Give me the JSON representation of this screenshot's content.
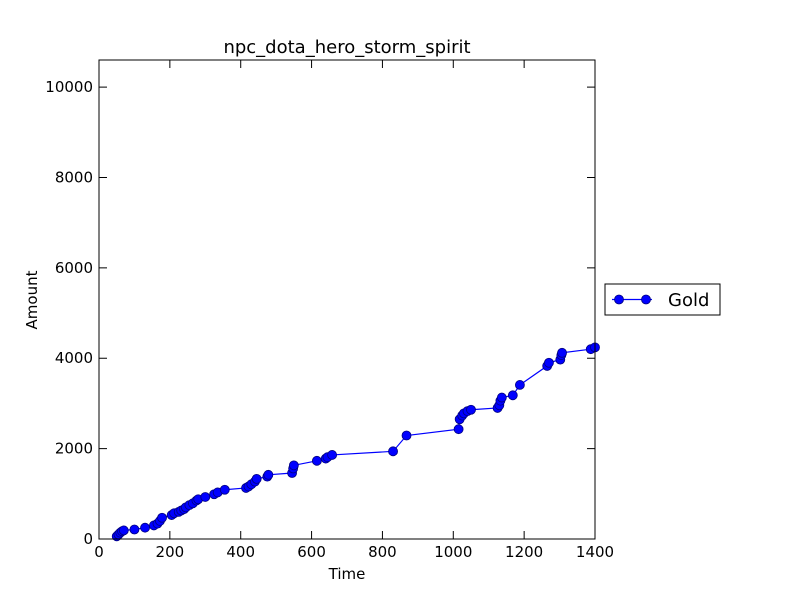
{
  "chart_data": {
    "type": "line",
    "title": "npc_dota_hero_storm_spirit",
    "xlabel": "Time",
    "ylabel": "Amount",
    "xlim": [
      0,
      1400
    ],
    "ylim": [
      0,
      10600
    ],
    "xticks": [
      0,
      200,
      400,
      600,
      800,
      1000,
      1200,
      1400
    ],
    "yticks": [
      0,
      2000,
      4000,
      6000,
      8000,
      10000
    ],
    "grid": false,
    "legend_position": "right",
    "series": [
      {
        "name": "Gold",
        "color": "#0000ff",
        "marker": "circle",
        "points": [
          [
            50,
            60
          ],
          [
            55,
            100
          ],
          [
            60,
            140
          ],
          [
            65,
            170
          ],
          [
            70,
            190
          ],
          [
            100,
            210
          ],
          [
            130,
            250
          ],
          [
            155,
            300
          ],
          [
            165,
            340
          ],
          [
            172,
            400
          ],
          [
            178,
            470
          ],
          [
            205,
            530
          ],
          [
            212,
            570
          ],
          [
            225,
            600
          ],
          [
            232,
            630
          ],
          [
            240,
            660
          ],
          [
            245,
            700
          ],
          [
            255,
            750
          ],
          [
            265,
            790
          ],
          [
            275,
            850
          ],
          [
            280,
            880
          ],
          [
            300,
            930
          ],
          [
            325,
            990
          ],
          [
            335,
            1030
          ],
          [
            355,
            1090
          ],
          [
            415,
            1130
          ],
          [
            422,
            1160
          ],
          [
            430,
            1210
          ],
          [
            440,
            1270
          ],
          [
            445,
            1330
          ],
          [
            475,
            1380
          ],
          [
            478,
            1420
          ],
          [
            545,
            1460
          ],
          [
            548,
            1560
          ],
          [
            550,
            1630
          ],
          [
            615,
            1730
          ],
          [
            640,
            1780
          ],
          [
            645,
            1810
          ],
          [
            658,
            1860
          ],
          [
            830,
            1940
          ],
          [
            868,
            2290
          ],
          [
            1015,
            2430
          ],
          [
            1018,
            2650
          ],
          [
            1025,
            2730
          ],
          [
            1030,
            2780
          ],
          [
            1040,
            2830
          ],
          [
            1050,
            2860
          ],
          [
            1125,
            2900
          ],
          [
            1130,
            2960
          ],
          [
            1133,
            3060
          ],
          [
            1137,
            3130
          ],
          [
            1168,
            3180
          ],
          [
            1188,
            3410
          ],
          [
            1265,
            3830
          ],
          [
            1270,
            3900
          ],
          [
            1302,
            3970
          ],
          [
            1305,
            4070
          ],
          [
            1307,
            4120
          ],
          [
            1388,
            4200
          ],
          [
            1400,
            4240
          ]
        ]
      }
    ]
  }
}
